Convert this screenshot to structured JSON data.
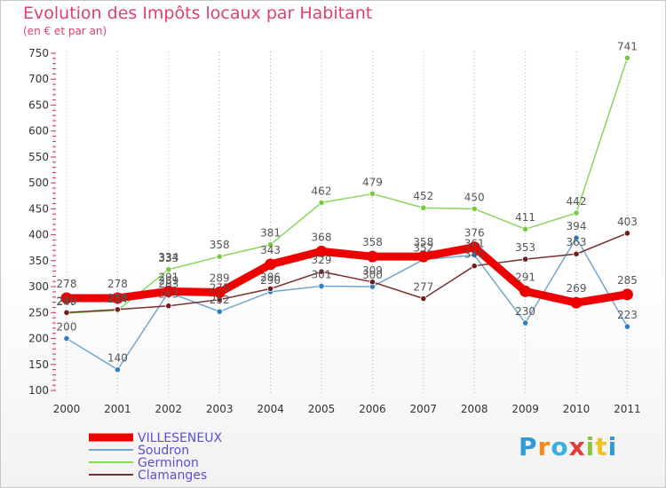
{
  "chart_data": {
    "type": "line",
    "title": "Evolution des Impôts locaux par Habitant",
    "subtitle": "(en € et par an)",
    "xlabel": "",
    "ylabel": "",
    "ylim": [
      100,
      750
    ],
    "yticks": [
      100,
      150,
      200,
      250,
      300,
      350,
      400,
      450,
      500,
      550,
      600,
      650,
      700,
      750
    ],
    "categories": [
      "2000",
      "2001",
      "2002",
      "2003",
      "2004",
      "2005",
      "2006",
      "2007",
      "2008",
      "2009",
      "2010",
      "2011"
    ],
    "grid": "dotted vertical",
    "legend_position": "bottom-left",
    "series": [
      {
        "name": "Germinon",
        "color": "#88d65c",
        "marker": "#7ac943",
        "width": "thin",
        "values": [
          249,
          254,
          333,
          358,
          381,
          462,
          479,
          452,
          450,
          411,
          442,
          741
        ],
        "labels": [
          "249",
          "254",
          "333",
          "358",
          "381",
          "462",
          "479",
          "452",
          "450",
          "411",
          "442",
          "741"
        ]
      },
      {
        "name": "Soudron",
        "color": "#6ea7d2",
        "marker": "#2f7fc1",
        "width": "thin",
        "values": [
          200,
          140,
          289,
          252,
          290,
          301,
          300,
          352,
          361,
          230,
          394,
          223
        ],
        "labels": [
          "200",
          "140",
          "289",
          "252",
          "290",
          "301",
          "300",
          "352",
          "361",
          "230",
          "394",
          "223"
        ]
      },
      {
        "name": "Clamanges",
        "color": "#7a2e2e",
        "marker": "#6b1f1f",
        "width": "thin",
        "values": [
          250,
          256,
          263,
          275,
          296,
          329,
          309,
          277,
          340,
          353,
          363,
          403
        ],
        "labels": [
          "250",
          "256",
          "263",
          "275",
          "296",
          "329",
          "309",
          "277",
          "340",
          "353",
          "363",
          "403"
        ]
      },
      {
        "name": "VILLESENEUX",
        "color": "#ee0000",
        "marker": "#ee0000",
        "width": "thick",
        "values": [
          278,
          278,
          291,
          289,
          343,
          368,
          358,
          358,
          376,
          291,
          269,
          285
        ],
        "labels": [
          "278",
          "278",
          "291",
          "289",
          "343",
          "368",
          "358",
          "358",
          "376",
          "291",
          "269",
          "285"
        ]
      }
    ],
    "extra_labels": [
      "334",
      "283"
    ]
  },
  "legend": [
    {
      "name": "VILLESENEUX",
      "color": "#ee0000",
      "thick": true
    },
    {
      "name": "Soudron",
      "color": "#6ea7d2",
      "thick": false
    },
    {
      "name": "Germinon",
      "color": "#88d65c",
      "thick": false
    },
    {
      "name": "Clamanges",
      "color": "#7a2e2e",
      "thick": false
    }
  ],
  "logo": {
    "letters": [
      "P",
      "r",
      "o",
      "x",
      "i",
      "t",
      "i"
    ]
  }
}
